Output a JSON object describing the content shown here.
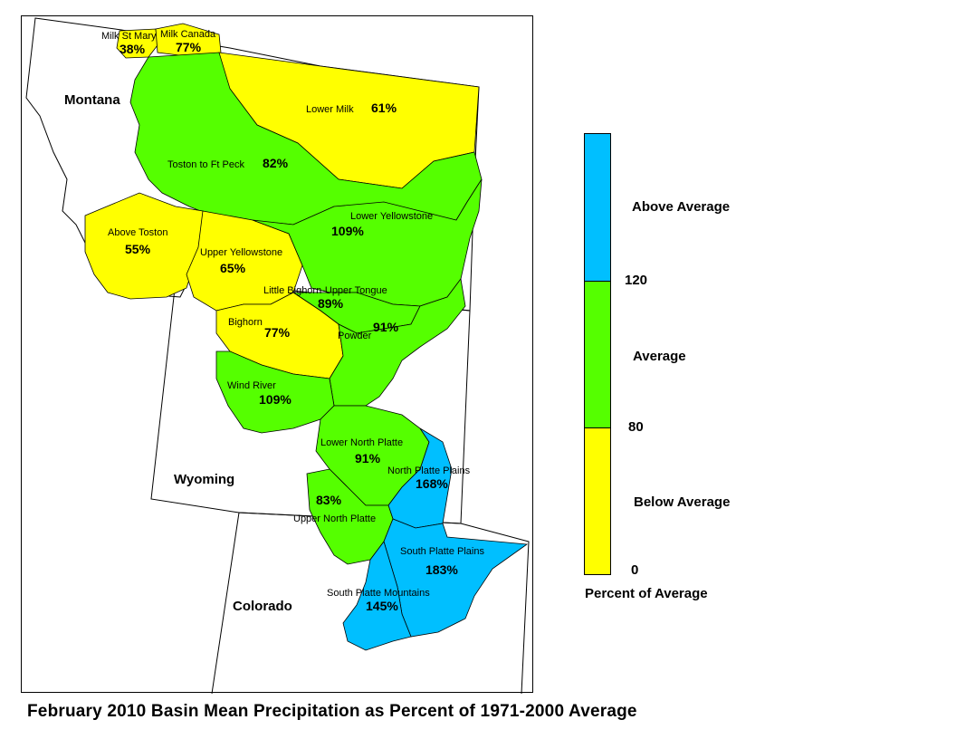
{
  "title": "February 2010 Basin Mean Precipitation as Percent of 1971-2000 Average",
  "colors": {
    "above": "#00bfff",
    "average": "#55ff00",
    "below": "#ffff00",
    "outline": "#000000"
  },
  "states": {
    "montana": "Montana",
    "wyoming": "Wyoming",
    "colorado": "Colorado"
  },
  "basins": [
    {
      "name": "Milk St Mary",
      "percent": "38%",
      "class": "below"
    },
    {
      "name": "Milk Canada",
      "percent": "77%",
      "class": "below"
    },
    {
      "name": "Lower Milk",
      "percent": "61%",
      "class": "below"
    },
    {
      "name": "Toston to Ft Peck",
      "percent": "82%",
      "class": "average"
    },
    {
      "name": "Above Toston",
      "percent": "55%",
      "class": "below"
    },
    {
      "name": "Upper Yellowstone",
      "percent": "65%",
      "class": "below"
    },
    {
      "name": "Lower Yellowstone",
      "percent": "109%",
      "class": "average"
    },
    {
      "name": "Little Bighorn-Upper Tongue",
      "percent": "89%",
      "class": "average"
    },
    {
      "name": "Bighorn",
      "percent": "77%",
      "class": "below"
    },
    {
      "name": "Powder",
      "percent": "91%",
      "class": "average"
    },
    {
      "name": "Wind River",
      "percent": "109%",
      "class": "average"
    },
    {
      "name": "Lower North Platte",
      "percent": "91%",
      "class": "average"
    },
    {
      "name": "North Platte Plains",
      "percent": "168%",
      "class": "above"
    },
    {
      "name": "Upper North Platte",
      "percent": "83%",
      "class": "average"
    },
    {
      "name": "South Platte Plains",
      "percent": "183%",
      "class": "above"
    },
    {
      "name": "South Platte Mountains",
      "percent": "145%",
      "class": "above"
    }
  ],
  "legend": {
    "title": "Percent of Average",
    "categories": [
      {
        "label": "Above Average",
        "range": [
          120,
          null
        ],
        "color": "#00bfff"
      },
      {
        "label": "Average",
        "range": [
          80,
          120
        ],
        "color": "#55ff00"
      },
      {
        "label": "Below Average",
        "range": [
          0,
          80
        ],
        "color": "#ffff00"
      }
    ],
    "ticks": [
      "120",
      "80",
      "0"
    ]
  }
}
